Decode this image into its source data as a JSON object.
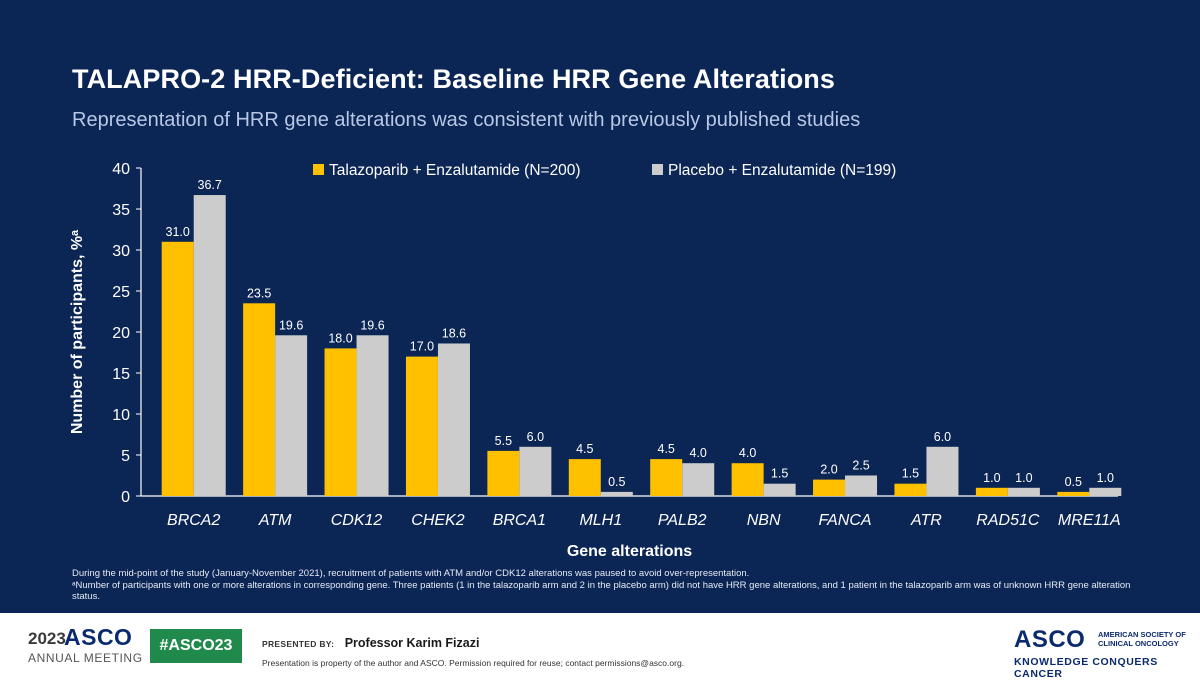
{
  "slide": {
    "title": "TALAPRO-2 HRR-Deficient: Baseline HRR Gene Alterations",
    "subtitle": "Representation of HRR gene alterations was consistent with previously published studies",
    "footnote_1": "During the mid-point of the study (January-November 2021), recruitment of patients with ATM and/or CDK12 alterations was paused to avoid over-representation.",
    "footnote_2": "ᵃNumber of participants with one or more alterations in corresponding gene. Three patients (1 in the talazoparib arm and 2 in the placebo arm) did not have HRR gene alterations, and 1 patient in the talazoparib arm was of unknown HRR gene alteration status."
  },
  "chart_data": {
    "type": "bar",
    "title": "",
    "xlabel": "Gene alterations",
    "ylabel": "Number of participants, %ᵃ",
    "ylim": [
      0,
      40
    ],
    "yticks": [
      0,
      5,
      10,
      15,
      20,
      25,
      30,
      35,
      40
    ],
    "categories": [
      "BRCA2",
      "ATM",
      "CDK12",
      "CHEK2",
      "BRCA1",
      "MLH1",
      "PALB2",
      "NBN",
      "FANCA",
      "ATR",
      "RAD51C",
      "MRE11A"
    ],
    "series": [
      {
        "name": "Talazoparib + Enzalutamide (N=200)",
        "color": "#ffc000",
        "values": [
          31.0,
          23.5,
          18.0,
          17.0,
          5.5,
          4.5,
          4.5,
          4.0,
          2.0,
          1.5,
          1.0,
          0.5
        ],
        "labels": [
          "31.0",
          "23.5",
          "18.0",
          "17.0",
          "5.5",
          "4.5",
          "4.5",
          "4.0",
          "2.0",
          "1.5",
          "1.0",
          "0.5"
        ]
      },
      {
        "name": "Placebo + Enzalutamide (N=199)",
        "color": "#cccccc",
        "values": [
          36.7,
          19.6,
          19.6,
          18.6,
          6.0,
          0.5,
          4.0,
          1.5,
          2.5,
          6.0,
          1.0,
          1.0
        ],
        "labels": [
          "36.7",
          "19.6",
          "19.6",
          "18.6",
          "6.0",
          "0.5",
          "4.0",
          "1.5",
          "2.5",
          "6.0",
          "1.0",
          "1.0"
        ]
      }
    ],
    "legend": "top-center",
    "grid": false
  },
  "footer": {
    "year": "2023",
    "asco": "ASCO",
    "annual_meeting": "ANNUAL MEETING",
    "hashtag": "#ASCO23",
    "presented_by_label": "PRESENTED BY:",
    "presenter": "Professor Karim Fizazi",
    "property_note": "Presentation is property of the author and ASCO. Permission required for reuse; contact permissions@asco.org.",
    "right_asco": "ASCO",
    "right_society_1": "AMERICAN SOCIETY OF",
    "right_society_2": "CLINICAL ONCOLOGY",
    "right_tagline": "KNOWLEDGE CONQUERS CANCER"
  }
}
